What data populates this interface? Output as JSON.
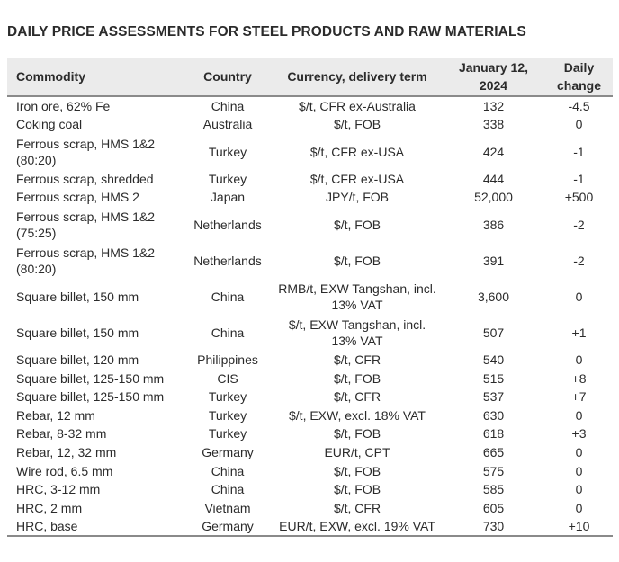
{
  "title": "DAILY PRICE ASSESSMENTS FOR STEEL PRODUCTS AND RAW MATERIALS",
  "headers": {
    "commodity": "Commodity",
    "country": "Country",
    "currency": "Currency, delivery term",
    "date_line1": "January 12,",
    "date_line2": "2024",
    "change_line1": "Daily",
    "change_line2": "change"
  },
  "rows": [
    {
      "commodity": "Iron ore, 62% Fe",
      "country": "China",
      "currency": "$/t, CFR ex-Australia",
      "price": "132",
      "change": "-4.5"
    },
    {
      "commodity": "Coking coal",
      "country": "Australia",
      "currency": "$/t, FOB",
      "price": "338",
      "change": "0"
    },
    {
      "commodity": "Ferrous scrap, HMS 1&2 (80:20)",
      "country": "Turkey",
      "currency": "$/t, CFR ex-USA",
      "price": "424",
      "change": "-1"
    },
    {
      "commodity": "Ferrous scrap, shredded",
      "country": "Turkey",
      "currency": "$/t, CFR ex-USA",
      "price": "444",
      "change": "-1"
    },
    {
      "commodity": "Ferrous scrap, HMS 2",
      "country": "Japan",
      "currency": "JPY/t, FOB",
      "price": "52,000",
      "change": "+500"
    },
    {
      "commodity": "Ferrous scrap, HMS 1&2 (75:25)",
      "country": "Netherlands",
      "currency": "$/t, FOB",
      "price": "386",
      "change": "-2"
    },
    {
      "commodity": "Ferrous scrap, HMS 1&2 (80:20)",
      "country": "Netherlands",
      "currency": "$/t, FOB",
      "price": "391",
      "change": "-2"
    },
    {
      "commodity": "Square billet, 150 mm",
      "country": "China",
      "currency": "RMB/t, EXW Tangshan, incl. 13% VAT",
      "price": "3,600",
      "change": "0"
    },
    {
      "commodity": "Square billet, 150 mm",
      "country": "China",
      "currency": "$/t, EXW Tangshan, incl. 13% VAT",
      "price": "507",
      "change": "+1"
    },
    {
      "commodity": "Square billet, 120 mm",
      "country": "Philippines",
      "currency": "$/t, CFR",
      "price": "540",
      "change": "0"
    },
    {
      "commodity": "Square billet, 125-150 mm",
      "country": "CIS",
      "currency": "$/t, FOB",
      "price": "515",
      "change": "+8"
    },
    {
      "commodity": "Square billet, 125-150 mm",
      "country": "Turkey",
      "currency": "$/t, CFR",
      "price": "537",
      "change": "+7"
    },
    {
      "commodity": "Rebar, 12 mm",
      "country": "Turkey",
      "currency": "$/t, EXW, excl. 18% VAT",
      "price": "630",
      "change": "0"
    },
    {
      "commodity": "Rebar, 8-32 mm",
      "country": "Turkey",
      "currency": "$/t, FOB",
      "price": "618",
      "change": "+3"
    },
    {
      "commodity": "Rebar, 12, 32 mm",
      "country": "Germany",
      "currency": "EUR/t, CPT",
      "price": "665",
      "change": "0"
    },
    {
      "commodity": "Wire rod, 6.5 mm",
      "country": "China",
      "currency": "$/t, FOB",
      "price": "575",
      "change": "0"
    },
    {
      "commodity": "HRC, 3-12 mm",
      "country": "China",
      "currency": "$/t, FOB",
      "price": "585",
      "change": "0"
    },
    {
      "commodity": "HRC, 2 mm",
      "country": "Vietnam",
      "currency": "$/t, CFR",
      "price": "605",
      "change": "0"
    },
    {
      "commodity": "HRC, base",
      "country": "Germany",
      "currency": "EUR/t, EXW, excl. 19% VAT",
      "price": "730",
      "change": "+10"
    }
  ]
}
